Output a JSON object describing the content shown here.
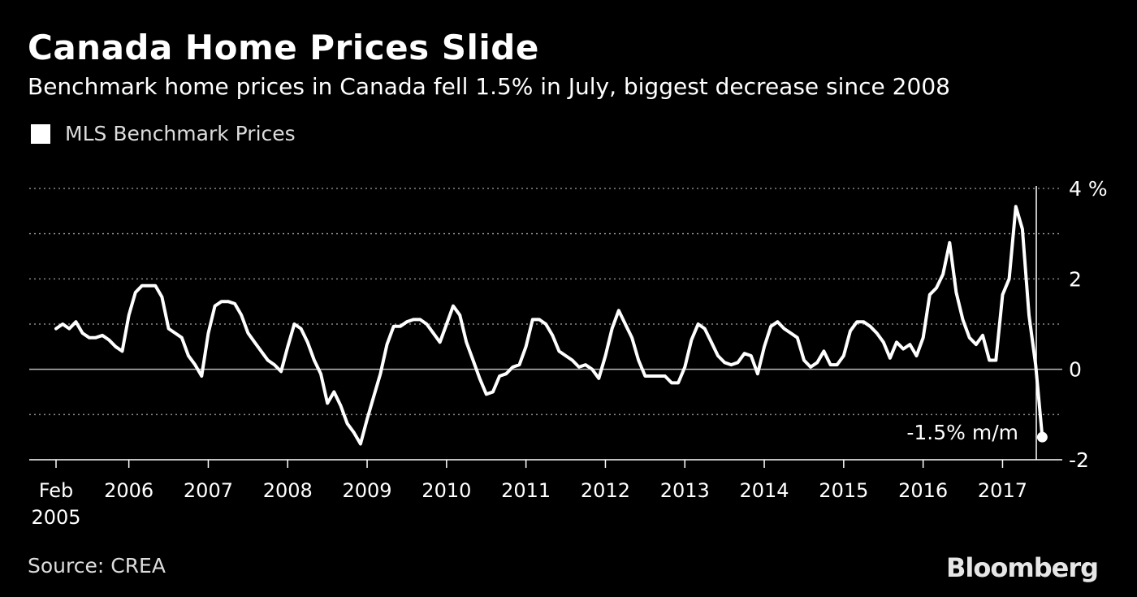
{
  "title": "Canada Home Prices Slide",
  "subtitle": "Benchmark home prices in Canada fell 1.5% in July, biggest decrease since 2008",
  "legend": {
    "label": "MLS Benchmark Prices",
    "color": "#ffffff"
  },
  "source": "Source: CREA",
  "brand": "Bloomberg",
  "annotation": "-1.5% m/m",
  "chart_data": {
    "type": "line",
    "title": "Canada Home Prices Slide",
    "subtitle": "Benchmark home prices in Canada fell 1.5% in July, biggest decrease since 2008",
    "ylabel": "",
    "y_unit": "%",
    "ylim": [
      -2,
      4
    ],
    "y_ticks": [
      4,
      2,
      0,
      -2
    ],
    "y_tick_labels": [
      "4 %",
      "2",
      "0",
      "-2"
    ],
    "grid": true,
    "legend_position": "top-left",
    "x_tick_labels": [
      "Feb\n2005",
      "2006",
      "2007",
      "2008",
      "2009",
      "2010",
      "2011",
      "2012",
      "2013",
      "2014",
      "2015",
      "2016",
      "2017"
    ],
    "series": [
      {
        "name": "MLS Benchmark Prices",
        "color": "#ffffff",
        "x": [
          "2005-02",
          "2005-03",
          "2005-04",
          "2005-05",
          "2005-06",
          "2005-07",
          "2005-08",
          "2005-09",
          "2005-10",
          "2005-11",
          "2005-12",
          "2006-01",
          "2006-02",
          "2006-03",
          "2006-04",
          "2006-05",
          "2006-06",
          "2006-07",
          "2006-08",
          "2006-09",
          "2006-10",
          "2006-11",
          "2006-12",
          "2007-01",
          "2007-02",
          "2007-03",
          "2007-04",
          "2007-05",
          "2007-06",
          "2007-07",
          "2007-08",
          "2007-09",
          "2007-10",
          "2007-11",
          "2007-12",
          "2008-01",
          "2008-02",
          "2008-03",
          "2008-04",
          "2008-05",
          "2008-06",
          "2008-07",
          "2008-08",
          "2008-09",
          "2008-10",
          "2008-11",
          "2008-12",
          "2009-01",
          "2009-02",
          "2009-03",
          "2009-04",
          "2009-05",
          "2009-06",
          "2009-07",
          "2009-08",
          "2009-09",
          "2009-10",
          "2009-11",
          "2009-12",
          "2010-01",
          "2010-02",
          "2010-03",
          "2010-04",
          "2010-05",
          "2010-06",
          "2010-07",
          "2010-08",
          "2010-09",
          "2010-10",
          "2010-11",
          "2010-12",
          "2011-01",
          "2011-02",
          "2011-03",
          "2011-04",
          "2011-05",
          "2011-06",
          "2011-07",
          "2011-08",
          "2011-09",
          "2011-10",
          "2011-11",
          "2011-12",
          "2012-01",
          "2012-02",
          "2012-03",
          "2012-04",
          "2012-05",
          "2012-06",
          "2012-07",
          "2012-08",
          "2012-09",
          "2012-10",
          "2012-11",
          "2012-12",
          "2013-01",
          "2013-02",
          "2013-03",
          "2013-04",
          "2013-05",
          "2013-06",
          "2013-07",
          "2013-08",
          "2013-09",
          "2013-10",
          "2013-11",
          "2013-12",
          "2014-01",
          "2014-02",
          "2014-03",
          "2014-04",
          "2014-05",
          "2014-06",
          "2014-07",
          "2014-08",
          "2014-09",
          "2014-10",
          "2014-11",
          "2014-12",
          "2015-01",
          "2015-02",
          "2015-03",
          "2015-04",
          "2015-05",
          "2015-06",
          "2015-07",
          "2015-08",
          "2015-09",
          "2015-10",
          "2015-11",
          "2015-12",
          "2016-01",
          "2016-02",
          "2016-03",
          "2016-04",
          "2016-05",
          "2016-06",
          "2016-07",
          "2016-08",
          "2016-09",
          "2016-10",
          "2016-11",
          "2016-12",
          "2017-01",
          "2017-02",
          "2017-03",
          "2017-04",
          "2017-05",
          "2017-06",
          "2017-07"
        ],
        "values": [
          0.9,
          1.0,
          0.9,
          1.05,
          0.8,
          0.7,
          0.7,
          0.75,
          0.65,
          0.5,
          0.4,
          1.2,
          1.7,
          1.85,
          1.85,
          1.85,
          1.6,
          0.9,
          0.8,
          0.7,
          0.3,
          0.1,
          -0.15,
          0.8,
          1.4,
          1.5,
          1.5,
          1.45,
          1.2,
          0.8,
          0.6,
          0.4,
          0.2,
          0.1,
          -0.05,
          0.5,
          1.0,
          0.9,
          0.6,
          0.2,
          -0.1,
          -0.75,
          -0.5,
          -0.8,
          -1.2,
          -1.4,
          -1.65,
          -1.1,
          -0.6,
          -0.1,
          0.55,
          0.95,
          0.95,
          1.05,
          1.1,
          1.1,
          1.0,
          0.8,
          0.6,
          1.0,
          1.4,
          1.2,
          0.6,
          0.2,
          -0.2,
          -0.55,
          -0.5,
          -0.15,
          -0.1,
          0.05,
          0.1,
          0.5,
          1.1,
          1.1,
          1.0,
          0.75,
          0.4,
          0.3,
          0.2,
          0.05,
          0.1,
          0.0,
          -0.2,
          0.3,
          0.9,
          1.3,
          1.0,
          0.7,
          0.2,
          -0.15,
          -0.15,
          -0.15,
          -0.15,
          -0.3,
          -0.3,
          0.05,
          0.65,
          1.0,
          0.9,
          0.6,
          0.3,
          0.15,
          0.1,
          0.15,
          0.35,
          0.3,
          -0.1,
          0.5,
          0.95,
          1.05,
          0.9,
          0.8,
          0.7,
          0.2,
          0.05,
          0.15,
          0.4,
          0.1,
          0.1,
          0.3,
          0.85,
          1.05,
          1.05,
          0.95,
          0.8,
          0.6,
          0.25,
          0.6,
          0.45,
          0.55,
          0.3,
          0.7,
          1.65,
          1.8,
          2.1,
          2.8,
          1.7,
          1.1,
          0.7,
          0.55,
          0.75,
          0.2,
          0.2,
          1.65,
          2.0,
          3.6,
          3.1,
          1.2,
          0.1,
          -1.5
        ]
      }
    ]
  }
}
